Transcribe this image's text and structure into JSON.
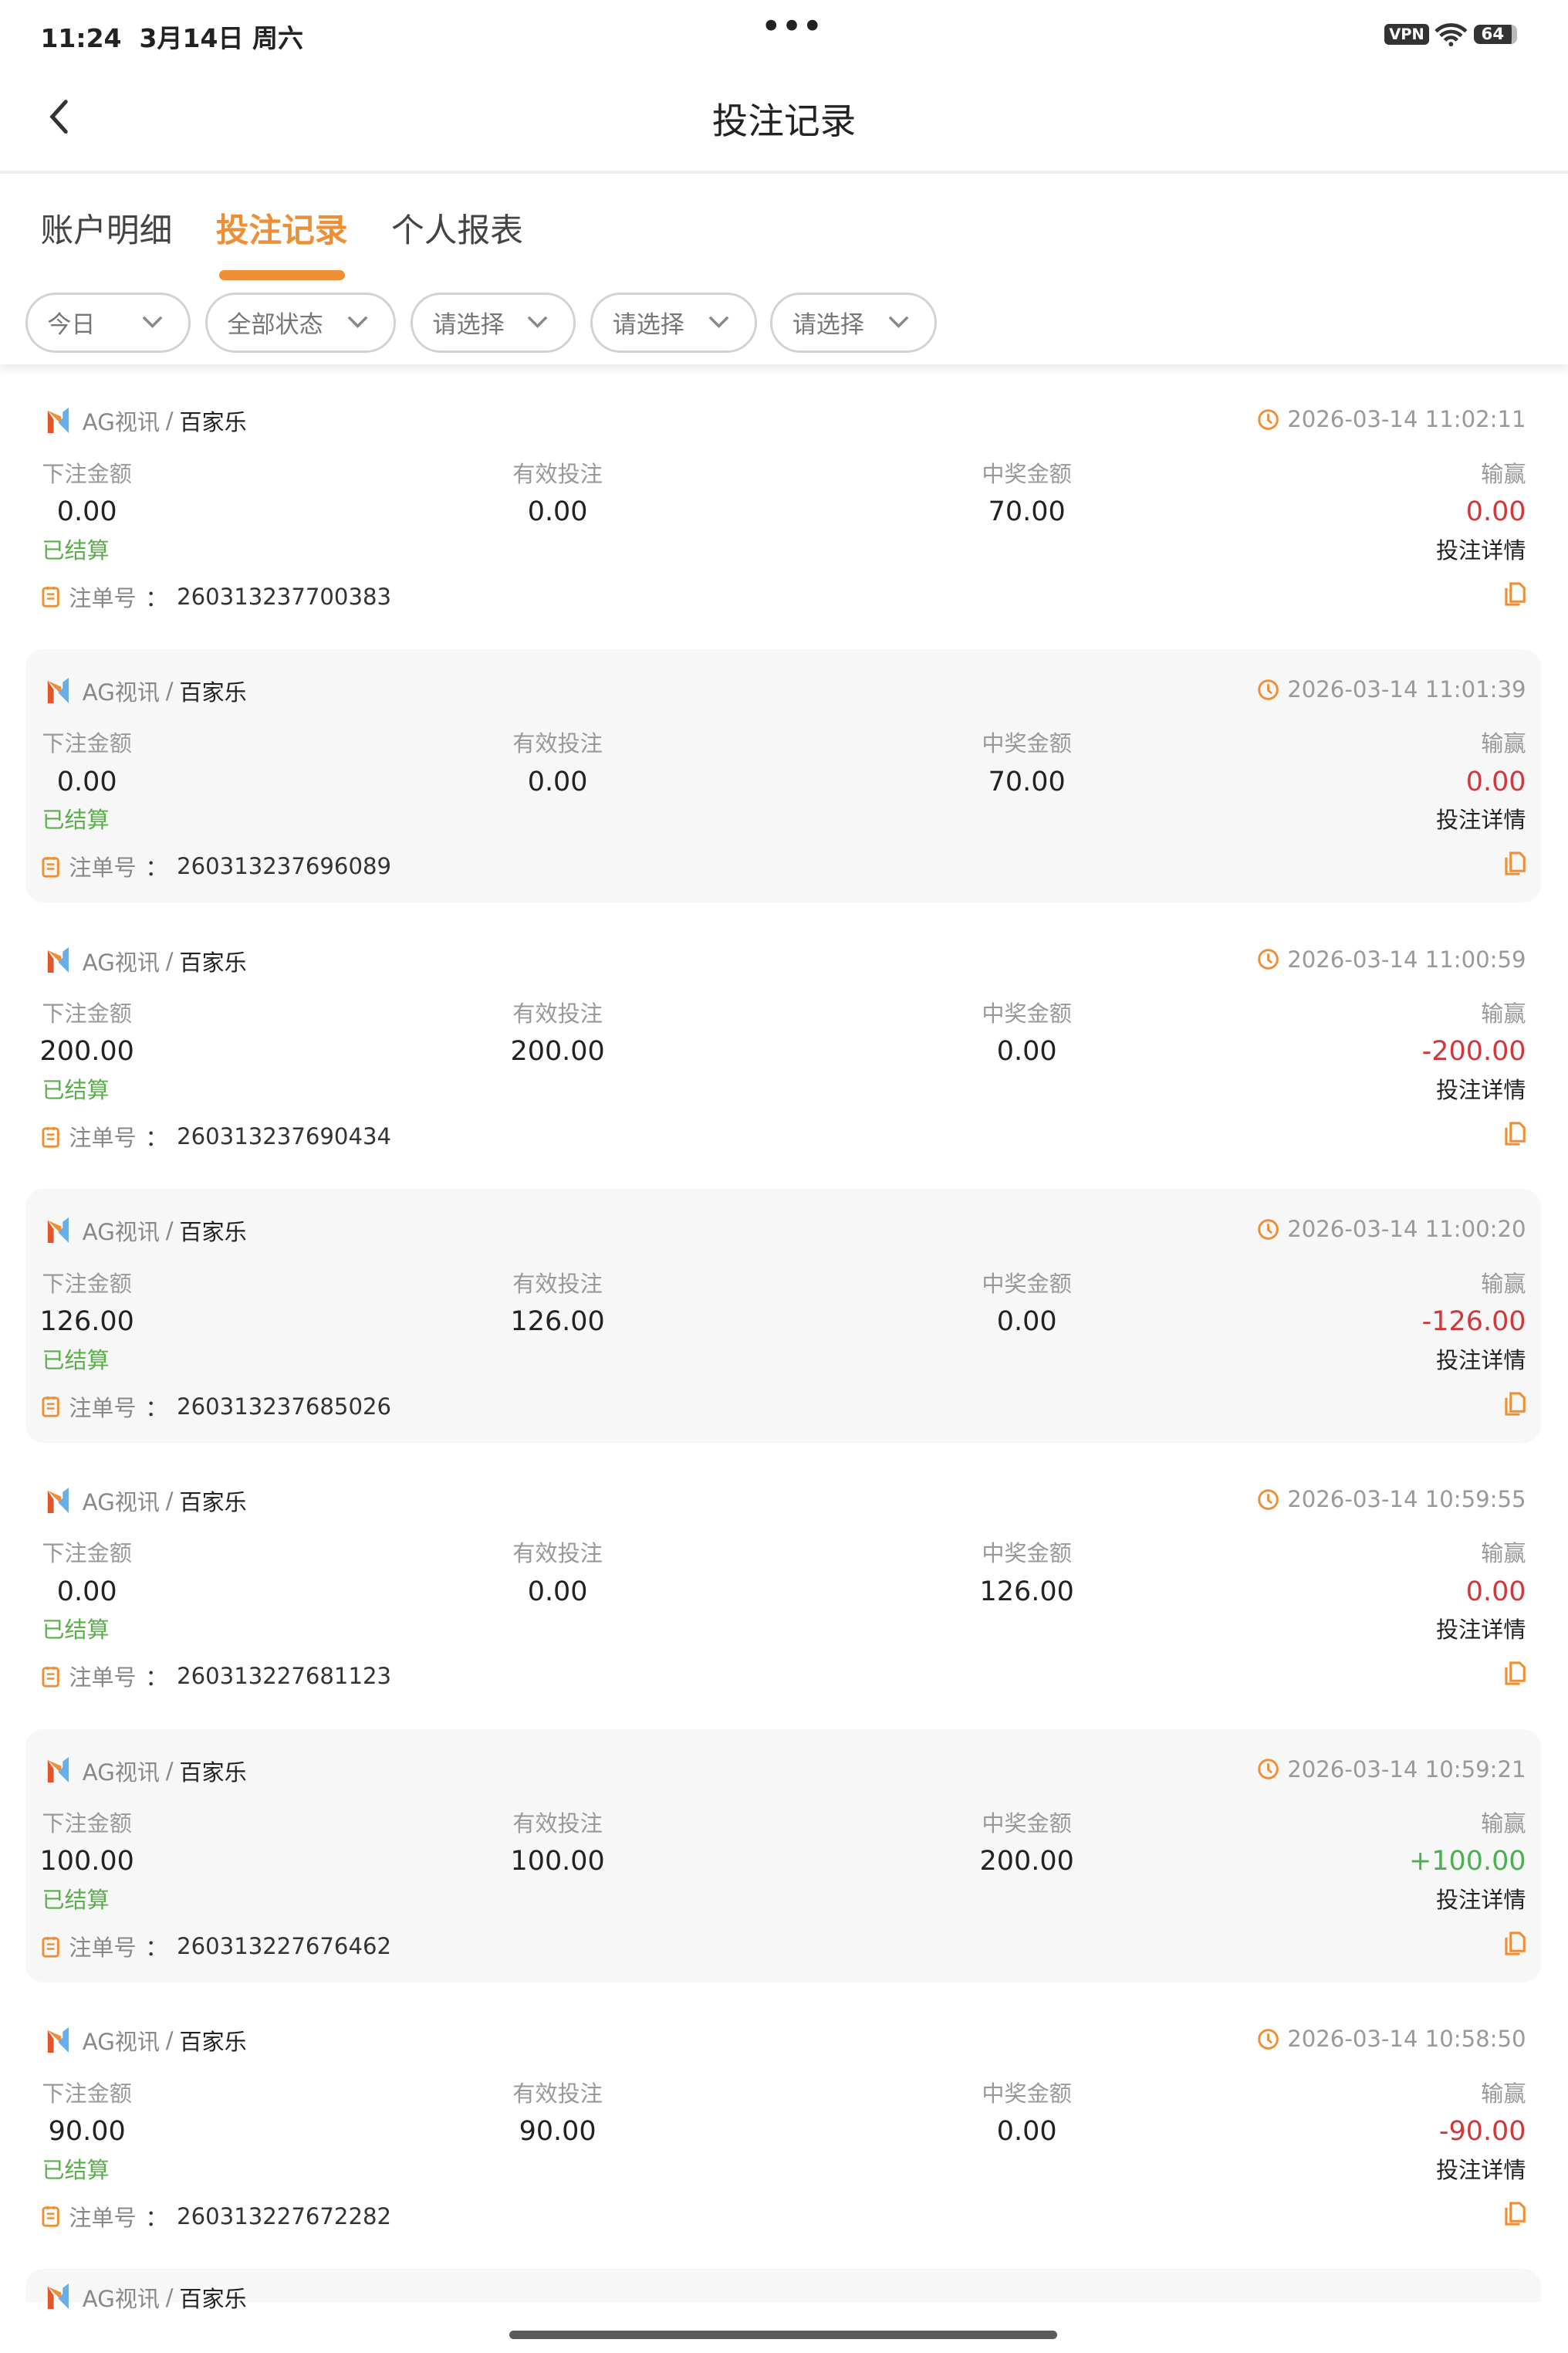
{
  "status_bar": {
    "time": "11:24",
    "date": "3月14日 周六",
    "menu_dots": "•••",
    "vpn": "VPN",
    "battery": "64"
  },
  "header": {
    "title": "投注记录",
    "back_icon": "chevron-left-icon"
  },
  "tabs": [
    {
      "label": "账户明细",
      "active": false
    },
    {
      "label": "投注记录",
      "active": true
    },
    {
      "label": "个人报表",
      "active": false
    }
  ],
  "filters": [
    {
      "label": "今日"
    },
    {
      "label": "全部状态"
    },
    {
      "label": "请选择"
    },
    {
      "label": "请选择"
    },
    {
      "label": "请选择"
    }
  ],
  "colors": {
    "accent": "#EE8F36",
    "loss": "#D0393B",
    "win": "#4CAF50",
    "settled": "#5BAE4B"
  },
  "columns": {
    "bet": "下注金额",
    "valid": "有效投注",
    "payout": "中奖金额",
    "winloss": "输赢"
  },
  "labels": {
    "detail": "投注详情",
    "order_prefix": "注单号",
    "order_sep": "：",
    "slash": "/"
  },
  "records": [
    {
      "provider": "AG视讯",
      "game": "百家乐",
      "time": "2026-03-14 11:02:11",
      "bet": "0.00",
      "valid": "0.00",
      "payout": "70.00",
      "winloss": "0.00",
      "winloss_type": "loss",
      "status": "已结算",
      "order": "260313237700383"
    },
    {
      "provider": "AG视讯",
      "game": "百家乐",
      "time": "2026-03-14 11:01:39",
      "bet": "0.00",
      "valid": "0.00",
      "payout": "70.00",
      "winloss": "0.00",
      "winloss_type": "loss",
      "status": "已结算",
      "order": "260313237696089"
    },
    {
      "provider": "AG视讯",
      "game": "百家乐",
      "time": "2026-03-14 11:00:59",
      "bet": "200.00",
      "valid": "200.00",
      "payout": "0.00",
      "winloss": "-200.00",
      "winloss_type": "loss",
      "status": "已结算",
      "order": "260313237690434"
    },
    {
      "provider": "AG视讯",
      "game": "百家乐",
      "time": "2026-03-14 11:00:20",
      "bet": "126.00",
      "valid": "126.00",
      "payout": "0.00",
      "winloss": "-126.00",
      "winloss_type": "loss",
      "status": "已结算",
      "order": "260313237685026"
    },
    {
      "provider": "AG视讯",
      "game": "百家乐",
      "time": "2026-03-14 10:59:55",
      "bet": "0.00",
      "valid": "0.00",
      "payout": "126.00",
      "winloss": "0.00",
      "winloss_type": "loss",
      "status": "已结算",
      "order": "260313227681123"
    },
    {
      "provider": "AG视讯",
      "game": "百家乐",
      "time": "2026-03-14 10:59:21",
      "bet": "100.00",
      "valid": "100.00",
      "payout": "200.00",
      "winloss": "+100.00",
      "winloss_type": "win",
      "status": "已结算",
      "order": "260313227676462"
    },
    {
      "provider": "AG视讯",
      "game": "百家乐",
      "time": "2026-03-14 10:58:50",
      "bet": "90.00",
      "valid": "90.00",
      "payout": "0.00",
      "winloss": "-90.00",
      "winloss_type": "loss",
      "status": "已结算",
      "order": "260313227672282"
    },
    {
      "provider": "AG视讯",
      "game": "百家乐",
      "partial": true
    }
  ]
}
